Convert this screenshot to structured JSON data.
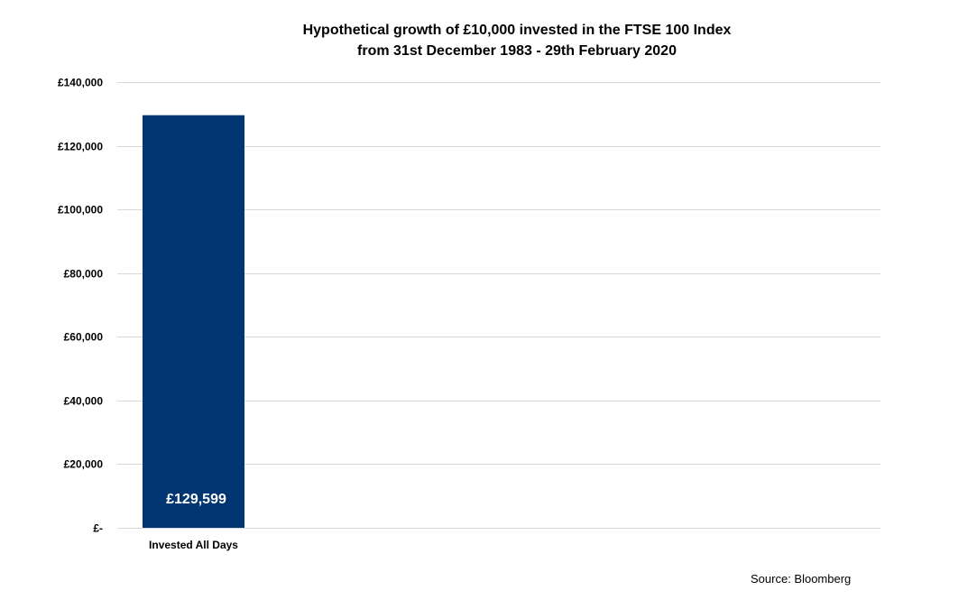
{
  "chart_data": {
    "type": "bar",
    "title": "Hypothetical growth of £10,000 invested in the FTSE 100 Index",
    "subtitle": "from 31st December 1983 - 29th February 2020",
    "categories": [
      "Invested All Days"
    ],
    "values": [
      129599
    ],
    "data_labels": [
      "£129,599"
    ],
    "ylim": [
      0,
      140000
    ],
    "yticks": [
      0,
      20000,
      40000,
      60000,
      80000,
      100000,
      120000,
      140000
    ],
    "ytick_labels": [
      "£-",
      "£20,000",
      "£40,000",
      "£60,000",
      "£80,000",
      "£100,000",
      "£120,000",
      "£140,000"
    ],
    "xlabel": "",
    "ylabel": "",
    "grid": true,
    "legend": "none",
    "colors": {
      "bar": "#003671",
      "grid": "#d9d9d9",
      "data_label": "#ffffff",
      "text": "#000000"
    }
  },
  "source": "Source: Bloomberg"
}
